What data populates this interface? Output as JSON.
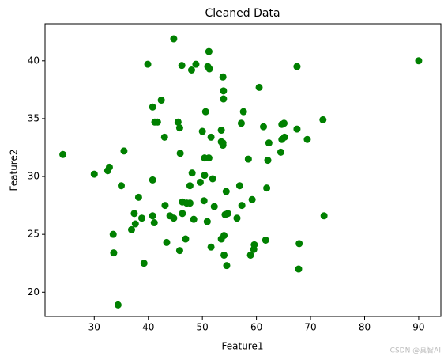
{
  "chart_data": {
    "type": "scatter",
    "title": "Cleaned Data",
    "x_label": "Feature1",
    "y_label": "Feature2",
    "color": "#008000",
    "watermark": "CSDN @真智AI",
    "xlim": [
      20.9,
      94.1
    ],
    "ylim": [
      17.9,
      43.2
    ],
    "xticks": [
      30,
      40,
      50,
      60,
      70,
      80,
      90
    ],
    "yticks": [
      20,
      25,
      30,
      35,
      40
    ],
    "series": [
      {
        "name": "Cleaned Data",
        "color": "#008000",
        "x": [
          44.7,
          51.2,
          39.9,
          46.2,
          48.8,
          51.0,
          48.0,
          51.3,
          90.0,
          67.5,
          53.8,
          60.5,
          53.9,
          53.9,
          42.4,
          40.8,
          50.6,
          57.6,
          41.7,
          41.2,
          45.5,
          45.8,
          57.2,
          65.1,
          64.7,
          72.3,
          61.3,
          67.5,
          53.5,
          50.0,
          43.0,
          51.6,
          65.2,
          64.7,
          69.4,
          53.5,
          53.8,
          53.8,
          62.3,
          35.5,
          64.5,
          24.2,
          45.9,
          50.4,
          51.2,
          58.5,
          62.1,
          48.1,
          30.0,
          32.5,
          32.8,
          50.4,
          51.9,
          40.8,
          35.0,
          47.7,
          49.6,
          56.9,
          61.9,
          54.4,
          38.2,
          59.2,
          46.3,
          47.1,
          47.7,
          50.3,
          43.1,
          52.2,
          57.3,
          37.4,
          40.8,
          46.3,
          54.2,
          54.7,
          72.5,
          38.8,
          44.0,
          44.7,
          48.4,
          50.9,
          41.1,
          56.4,
          37.6,
          36.9,
          33.5,
          46.9,
          53.5,
          54.0,
          61.7,
          43.4,
          59.6,
          67.9,
          51.6,
          45.8,
          33.6,
          54.0,
          59.5,
          58.9,
          39.2,
          54.5,
          67.8,
          34.4
        ],
        "values": [
          41.9,
          40.8,
          39.7,
          39.6,
          39.7,
          39.5,
          39.2,
          39.3,
          40.0,
          39.5,
          38.6,
          37.7,
          37.4,
          36.7,
          36.6,
          36.0,
          35.6,
          35.6,
          34.7,
          34.7,
          34.7,
          34.2,
          34.6,
          34.6,
          34.5,
          34.9,
          34.3,
          34.1,
          34.0,
          33.9,
          33.4,
          33.4,
          33.4,
          33.2,
          33.2,
          33.0,
          32.7,
          32.9,
          32.9,
          32.2,
          32.1,
          31.9,
          32.0,
          31.6,
          31.6,
          31.5,
          31.4,
          30.3,
          30.2,
          30.5,
          30.8,
          30.1,
          29.8,
          29.7,
          29.2,
          29.2,
          29.5,
          29.2,
          29.0,
          28.7,
          28.2,
          28.0,
          27.8,
          27.7,
          27.7,
          27.9,
          27.5,
          27.4,
          27.5,
          26.8,
          26.6,
          26.8,
          26.7,
          26.8,
          26.6,
          26.4,
          26.6,
          26.4,
          26.3,
          26.1,
          26.0,
          26.4,
          25.9,
          25.4,
          25.0,
          24.6,
          24.6,
          24.9,
          24.5,
          24.3,
          24.1,
          24.2,
          23.9,
          23.6,
          23.4,
          23.2,
          23.7,
          23.2,
          22.5,
          22.3,
          22.0,
          18.9
        ]
      }
    ]
  }
}
